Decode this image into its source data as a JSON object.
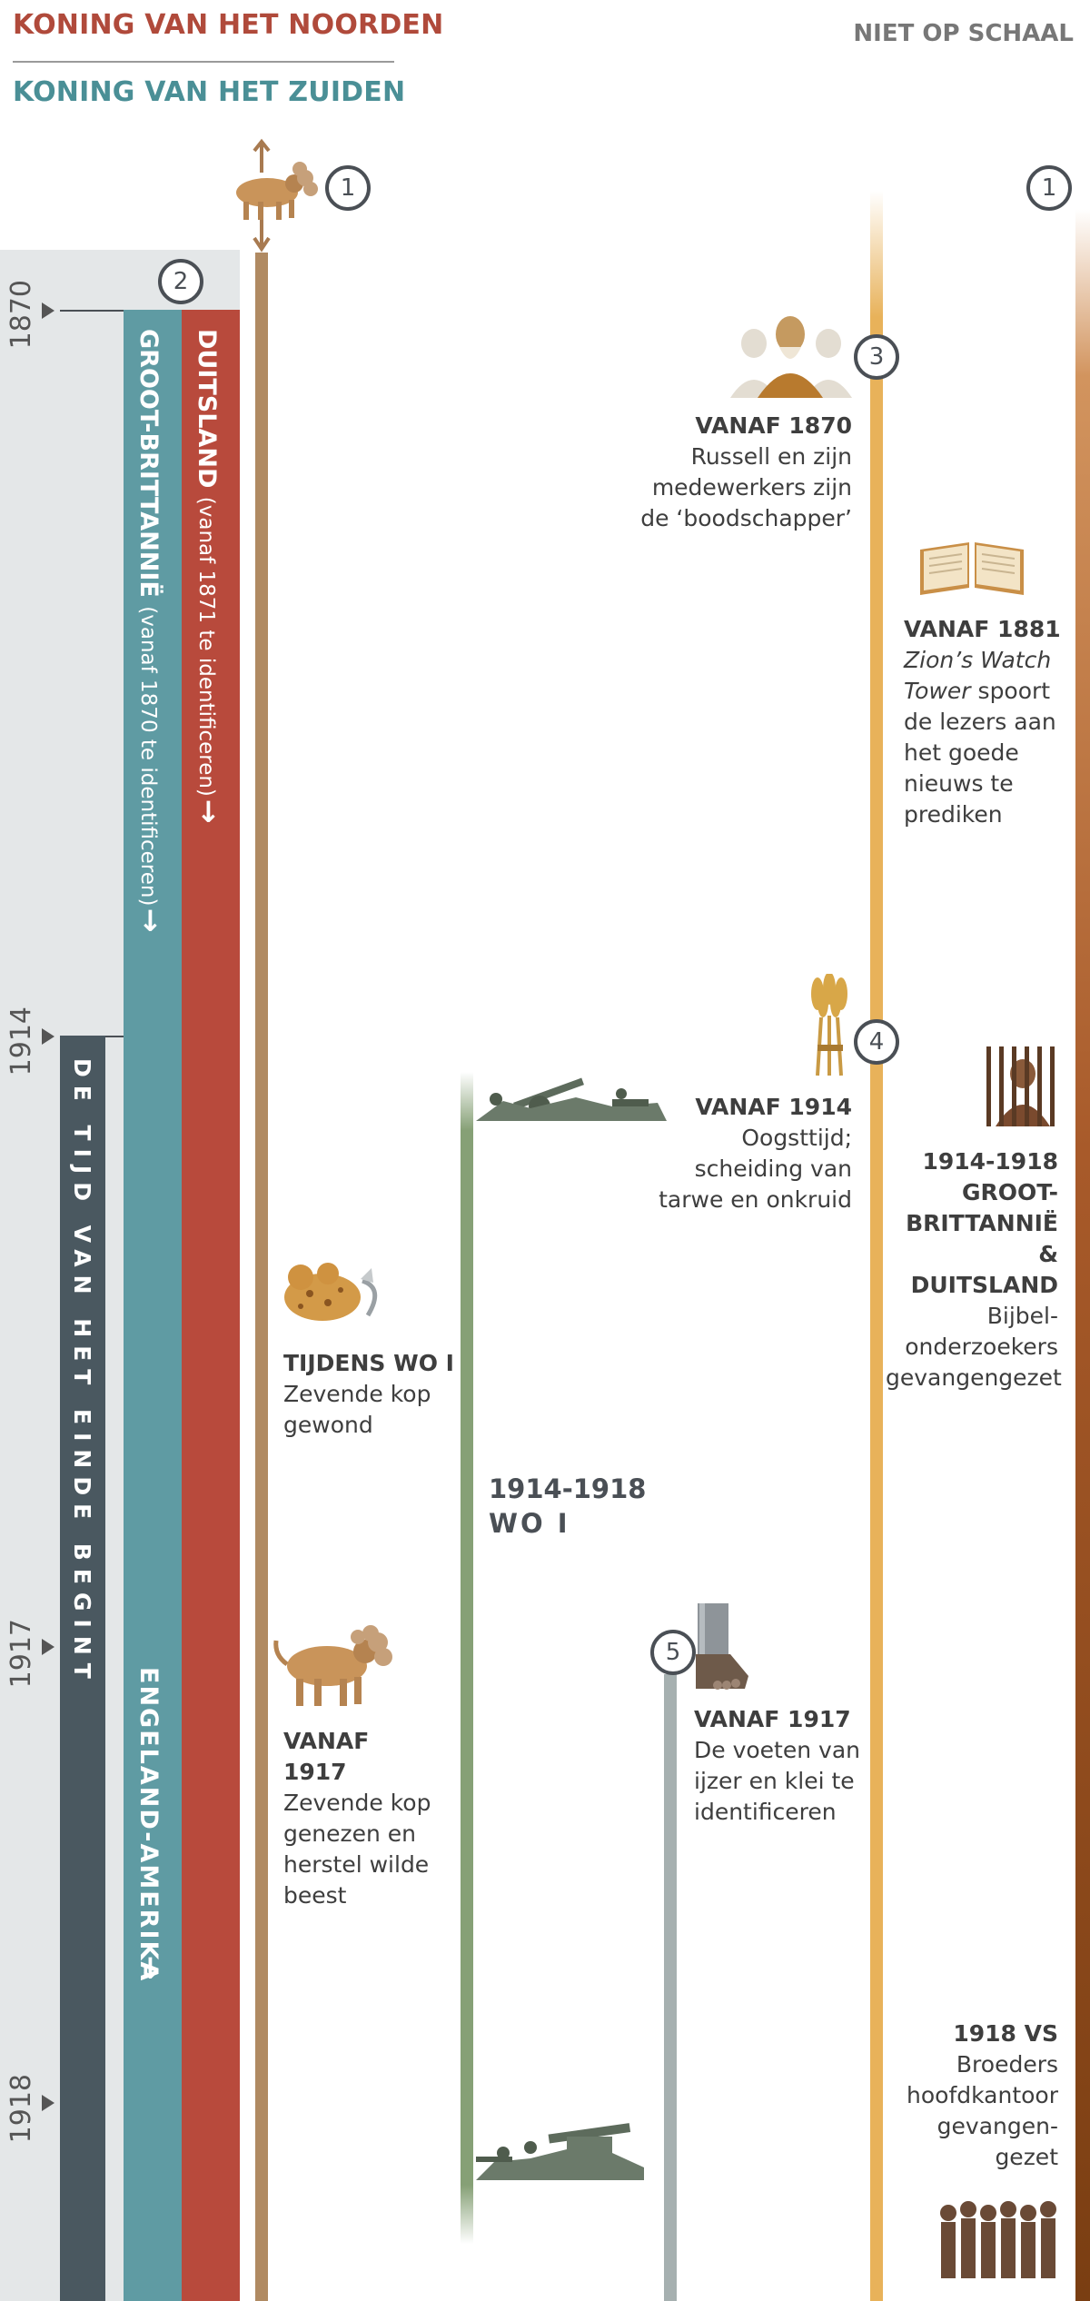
{
  "legend": {
    "north": "KONING VAN HET NOORDEN",
    "south": "KONING VAN HET ZUIDEN",
    "scale_note": "NIET OP SCHAAL",
    "north_color": "#b04a3b",
    "south_color": "#4a8f96"
  },
  "years": [
    "1870",
    "1914",
    "1917",
    "1918"
  ],
  "markers": [
    "1",
    "1",
    "2",
    "3",
    "4",
    "5"
  ],
  "bars": {
    "germany_title": "DUITSLAND",
    "germany_sub": "(vanaf 1871 te identificeren)",
    "britain_title": "GROOT-BRITTANNIË",
    "britain_sub": "(vanaf 1870 te identificeren)",
    "time_end": "DE TIJD VAN HET EINDE BEGINT",
    "england_america": "ENGELAND-AMERIKA",
    "arrow": "↓"
  },
  "events": {
    "e1870_title": "VANAF 1870",
    "e1870_body": "Russell en zijn medewerkers zijn de ‘boodschapper’",
    "e1881_title": "VANAF 1881",
    "e1881_italic": "Zion’s Watch Tower",
    "e1881_body": " spoort de lezers aan het goede nieuws te prediken",
    "e1914_title": "VANAF 1914",
    "e1914_body": "Oogsttijd; scheiding van tarwe en onkruid",
    "prison_title": "1914-1918 GROOT-BRITTANNIË & DUITSLAND",
    "prison_body": "Bijbel-onderzoekers gevangengezet",
    "ww1_head_title": "TIJDENS WO I",
    "ww1_head_body": "Zevende kop gewond",
    "ww1_title": "1914-1918",
    "ww1_sub": "WO I",
    "heal_title": "VANAF 1917",
    "heal_body": "Zevende kop genezen en herstel wilde beest",
    "feet_title": "VANAF 1917",
    "feet_body": "De voeten van ijzer en klei te identificeren",
    "us_title": "1918 VS",
    "us_body": "Broeders hoofdkantoor gevangen-gezet"
  }
}
